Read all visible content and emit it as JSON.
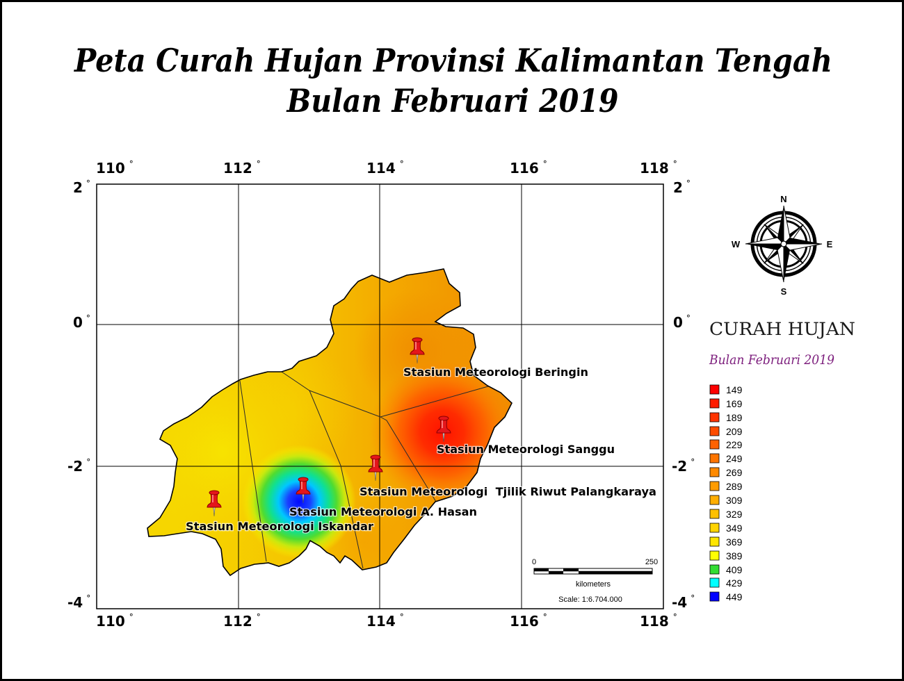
{
  "title": {
    "line1": "Peta Curah Hujan Provinsi Kalimantan Tengah",
    "line2": "Bulan Februari 2019"
  },
  "map": {
    "longitude_ticks": [
      "110",
      "112",
      "114",
      "116",
      "118"
    ],
    "latitude_ticks": [
      "2",
      "0",
      "-2",
      "-4"
    ],
    "degree_symbol": "°",
    "marker_color": "#e4161b",
    "stations": [
      {
        "name": "Stasiun Meteorologi Beringin"
      },
      {
        "name": "Stasiun Meteorologi Sanggu"
      },
      {
        "name": "Stasiun Meteorologi  Tjilik Riwut Palangkaraya"
      },
      {
        "name": "Stasiun Meteorologi A. Hasan"
      },
      {
        "name": "Stasiun Meteorologi Iskandar"
      }
    ]
  },
  "compass": {
    "north": "N",
    "south": "S",
    "east": "E",
    "west": "W"
  },
  "legend": {
    "title": "CURAH HUJAN",
    "subtitle": "Bulan Februari 2019",
    "subtitle_color": "#7c1d7c",
    "items": [
      {
        "value": "149",
        "color": "#ff0000"
      },
      {
        "value": "169",
        "color": "#ff1c00"
      },
      {
        "value": "189",
        "color": "#ff3400"
      },
      {
        "value": "209",
        "color": "#ff4c00"
      },
      {
        "value": "229",
        "color": "#ff6200"
      },
      {
        "value": "249",
        "color": "#ff7500"
      },
      {
        "value": "269",
        "color": "#ff8a00"
      },
      {
        "value": "289",
        "color": "#ff9c00"
      },
      {
        "value": "309",
        "color": "#ffae00"
      },
      {
        "value": "329",
        "color": "#ffc000"
      },
      {
        "value": "349",
        "color": "#ffd400"
      },
      {
        "value": "369",
        "color": "#ffe600"
      },
      {
        "value": "389",
        "color": "#ffff00"
      },
      {
        "value": "409",
        "color": "#33dd33"
      },
      {
        "value": "429",
        "color": "#00ffff"
      },
      {
        "value": "449",
        "color": "#0000ff"
      }
    ]
  },
  "scale_bar": {
    "start_label": "0",
    "end_label": "250",
    "unit": "kilometers",
    "scale": "Scale: 1:6.704.000"
  }
}
